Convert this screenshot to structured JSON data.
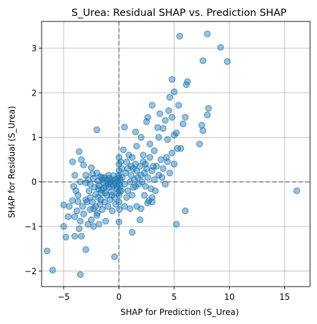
{
  "chart_data": {
    "type": "scatter",
    "title": "S_Urea: Residual SHAP vs. Prediction SHAP",
    "xlabel": "SHAP for Prediction (S_Urea)",
    "ylabel": "SHAP for Residual (S_Urea)",
    "xlim": [
      -7,
      17.3
    ],
    "ylim": [
      -2.35,
      3.6
    ],
    "xticks": [
      -5,
      0,
      5,
      10,
      15
    ],
    "yticks": [
      -2,
      -1,
      0,
      1,
      2,
      3
    ],
    "xtick_labels": [
      "−5",
      "0",
      "5",
      "10",
      "15"
    ],
    "ytick_labels": [
      "−2",
      "−1",
      "0",
      "1",
      "2",
      "3"
    ],
    "grid": true,
    "reference_lines": {
      "x": 0,
      "y": 0,
      "style": "dashed",
      "color": "#808080"
    },
    "marker_color": "#1f77b4",
    "points": [
      [
        -6.5,
        -1.55
      ],
      [
        -6.0,
        -1.98
      ],
      [
        -3.5,
        -2.08
      ],
      [
        -3.0,
        -1.52
      ],
      [
        -0.4,
        -1.68
      ],
      [
        -5.0,
        -0.52
      ],
      [
        -5.0,
        -1.0
      ],
      [
        -4.8,
        -1.24
      ],
      [
        -4.6,
        -0.78
      ],
      [
        -4.5,
        -0.55
      ],
      [
        -4.2,
        -0.42
      ],
      [
        -4.0,
        -0.78
      ],
      [
        -4.0,
        -1.22
      ],
      [
        -3.8,
        -0.65
      ],
      [
        -3.7,
        -0.44
      ],
      [
        -3.6,
        -1.05
      ],
      [
        -3.5,
        -0.88
      ],
      [
        -3.4,
        -1.22
      ],
      [
        -3.3,
        -0.55
      ],
      [
        -3.2,
        -0.72
      ],
      [
        -3.0,
        -0.4
      ],
      [
        -2.8,
        -0.95
      ],
      [
        -2.6,
        -0.62
      ],
      [
        -2.5,
        -0.85
      ],
      [
        -2.4,
        -0.45
      ],
      [
        -2.3,
        -1.0
      ],
      [
        -2.1,
        -0.55
      ],
      [
        -2.0,
        -0.75
      ],
      [
        -1.9,
        -0.35
      ],
      [
        -1.8,
        -0.95
      ],
      [
        -1.7,
        -0.5
      ],
      [
        -1.6,
        -0.25
      ],
      [
        -1.5,
        -0.62
      ],
      [
        -1.4,
        -0.15
      ],
      [
        -1.3,
        -0.45
      ],
      [
        -1.2,
        -0.88
      ],
      [
        -1.1,
        -0.3
      ],
      [
        -1.0,
        -0.55
      ],
      [
        -0.9,
        -0.12
      ],
      [
        -0.8,
        -0.4
      ],
      [
        -0.7,
        -0.22
      ],
      [
        -0.6,
        -0.65
      ],
      [
        -0.5,
        -0.08
      ],
      [
        -0.4,
        -0.35
      ],
      [
        -0.3,
        -0.5
      ],
      [
        -0.2,
        -0.15
      ],
      [
        -0.1,
        -0.25
      ],
      [
        0.0,
        -0.45
      ],
      [
        0.0,
        -0.9
      ],
      [
        0.05,
        -0.62
      ],
      [
        -4.2,
        0.45
      ],
      [
        -4.0,
        0.15
      ],
      [
        -3.6,
        0.68
      ],
      [
        -3.4,
        0.5
      ],
      [
        -3.2,
        0.38
      ],
      [
        -3.0,
        0.15
      ],
      [
        -2.8,
        0.05
      ],
      [
        -2.6,
        -0.05
      ],
      [
        -2.5,
        0.32
      ],
      [
        -2.3,
        0.08
      ],
      [
        -2.2,
        -0.12
      ],
      [
        -2.0,
        0.2
      ],
      [
        -1.9,
        0.02
      ],
      [
        -1.8,
        -0.08
      ],
      [
        -1.7,
        0.12
      ],
      [
        -1.6,
        -0.18
      ],
      [
        -1.5,
        0.05
      ],
      [
        -1.4,
        -0.02
      ],
      [
        -1.3,
        0.1
      ],
      [
        -1.2,
        -0.1
      ],
      [
        -1.1,
        0.04
      ],
      [
        -1.0,
        -0.04
      ],
      [
        -0.9,
        0.08
      ],
      [
        -0.8,
        0.0
      ],
      [
        -0.7,
        -0.06
      ],
      [
        -0.6,
        0.05
      ],
      [
        -0.5,
        0.14
      ],
      [
        -0.4,
        -0.02
      ],
      [
        -0.3,
        0.06
      ],
      [
        -0.2,
        -0.1
      ],
      [
        -0.1,
        0.02
      ],
      [
        -3.0,
        -0.02
      ],
      [
        -2.7,
        -0.2
      ],
      [
        -2.4,
        0.18
      ],
      [
        -2.1,
        -0.28
      ],
      [
        -1.85,
        -0.15
      ],
      [
        -1.55,
        0.1
      ],
      [
        -1.25,
        -0.25
      ],
      [
        -0.95,
        0.15
      ],
      [
        -0.65,
        -0.3
      ],
      [
        -2.0,
        1.17
      ],
      [
        -4.1,
        -0.1
      ],
      [
        -3.9,
        -0.2
      ],
      [
        -3.7,
        -0.3
      ],
      [
        -3.5,
        0.0
      ],
      [
        -2.9,
        -0.45
      ],
      [
        -2.6,
        -0.35
      ],
      [
        -2.3,
        -0.6
      ],
      [
        -1.95,
        -0.7
      ],
      [
        -1.65,
        -0.4
      ],
      [
        0.0,
        0.1
      ],
      [
        0.0,
        0.25
      ],
      [
        0.0,
        0.4
      ],
      [
        0.0,
        0.55
      ],
      [
        0.05,
        -0.05
      ],
      [
        0.05,
        -0.2
      ],
      [
        0.0,
        -0.3
      ],
      [
        0.1,
        0.05
      ],
      [
        0.1,
        -0.1
      ],
      [
        0.0,
        0.15
      ],
      [
        0.3,
        0.1
      ],
      [
        0.5,
        -0.05
      ],
      [
        0.6,
        0.2
      ],
      [
        0.8,
        -0.2
      ],
      [
        1.0,
        0.0
      ],
      [
        1.1,
        0.15
      ],
      [
        1.2,
        -0.3
      ],
      [
        1.3,
        0.3
      ],
      [
        1.4,
        0.05
      ],
      [
        1.5,
        -0.1
      ],
      [
        1.6,
        0.25
      ],
      [
        1.7,
        0.1
      ],
      [
        1.8,
        -0.05
      ],
      [
        1.9,
        0.35
      ],
      [
        2.0,
        0.15
      ],
      [
        2.1,
        0.0
      ],
      [
        2.2,
        0.45
      ],
      [
        2.3,
        0.2
      ],
      [
        2.4,
        -0.1
      ],
      [
        2.5,
        0.3
      ],
      [
        2.6,
        0.1
      ],
      [
        2.8,
        0.55
      ],
      [
        2.9,
        -0.15
      ],
      [
        3.0,
        0.25
      ],
      [
        3.2,
        0.05
      ],
      [
        3.4,
        0.35
      ],
      [
        3.6,
        0.15
      ],
      [
        3.8,
        0.5
      ],
      [
        4.0,
        0.3
      ],
      [
        4.2,
        -0.05
      ],
      [
        4.4,
        0.45
      ],
      [
        4.6,
        0.2
      ],
      [
        4.8,
        0.65
      ],
      [
        5.0,
        0.4
      ],
      [
        5.3,
        0.75
      ],
      [
        0.4,
        0.72
      ],
      [
        0.8,
        0.3
      ],
      [
        1.2,
        0.55
      ],
      [
        1.6,
        0.8
      ],
      [
        2.0,
        1.0
      ],
      [
        2.4,
        0.4
      ],
      [
        2.8,
        0.85
      ],
      [
        3.2,
        0.7
      ],
      [
        3.6,
        1.0
      ],
      [
        4.0,
        1.2
      ],
      [
        4.4,
        0.95
      ],
      [
        4.8,
        1.45
      ],
      [
        5.2,
        1.1
      ],
      [
        5.6,
        0.75
      ],
      [
        6.0,
        1.45
      ],
      [
        0.5,
        1.23
      ],
      [
        1.5,
        1.12
      ],
      [
        2.5,
        1.35
      ],
      [
        2.6,
        1.45
      ],
      [
        3.5,
        1.22
      ],
      [
        3.7,
        1.53
      ],
      [
        4.2,
        1.38
      ],
      [
        4.5,
        1.6
      ],
      [
        5.0,
        1.05
      ],
      [
        5.4,
        1.72
      ],
      [
        5.8,
        1.3
      ],
      [
        6.2,
        2.25
      ],
      [
        6.1,
        2.18
      ],
      [
        7.3,
        0.85
      ],
      [
        7.5,
        1.27
      ],
      [
        7.6,
        1.15
      ],
      [
        8.0,
        1.5
      ],
      [
        8.1,
        1.65
      ],
      [
        5.0,
        2.02
      ],
      [
        4.6,
        1.9
      ],
      [
        4.8,
        2.3
      ],
      [
        3.0,
        1.72
      ],
      [
        5.5,
        3.27
      ],
      [
        8.0,
        3.32
      ],
      [
        9.2,
        3.02
      ],
      [
        9.8,
        2.7
      ],
      [
        7.6,
        2.72
      ],
      [
        3.3,
        -0.2
      ],
      [
        3.0,
        -0.35
      ],
      [
        3.0,
        -0.45
      ],
      [
        2.0,
        -0.6
      ],
      [
        2.7,
        -0.42
      ],
      [
        2.6,
        -0.47
      ],
      [
        1.9,
        -0.85
      ],
      [
        1.2,
        -1.13
      ],
      [
        5.2,
        -0.95
      ],
      [
        6.0,
        -0.65
      ],
      [
        16.1,
        -0.2
      ],
      [
        0.2,
        -0.2
      ],
      [
        0.25,
        0.3
      ],
      [
        0.15,
        0.45
      ],
      [
        0.7,
        0.45
      ],
      [
        0.9,
        0.6
      ],
      [
        1.3,
        -0.12
      ],
      [
        1.5,
        0.4
      ],
      [
        2.2,
        0.6
      ],
      [
        3.1,
        0.35
      ],
      [
        3.9,
        0.1
      ],
      [
        4.3,
        0.55
      ],
      [
        0.5,
        -0.55
      ],
      [
        0.7,
        -0.35
      ],
      [
        1.0,
        -0.6
      ],
      [
        1.6,
        -0.55
      ],
      [
        2.3,
        -0.3
      ],
      [
        1.1,
        0.35
      ]
    ]
  }
}
